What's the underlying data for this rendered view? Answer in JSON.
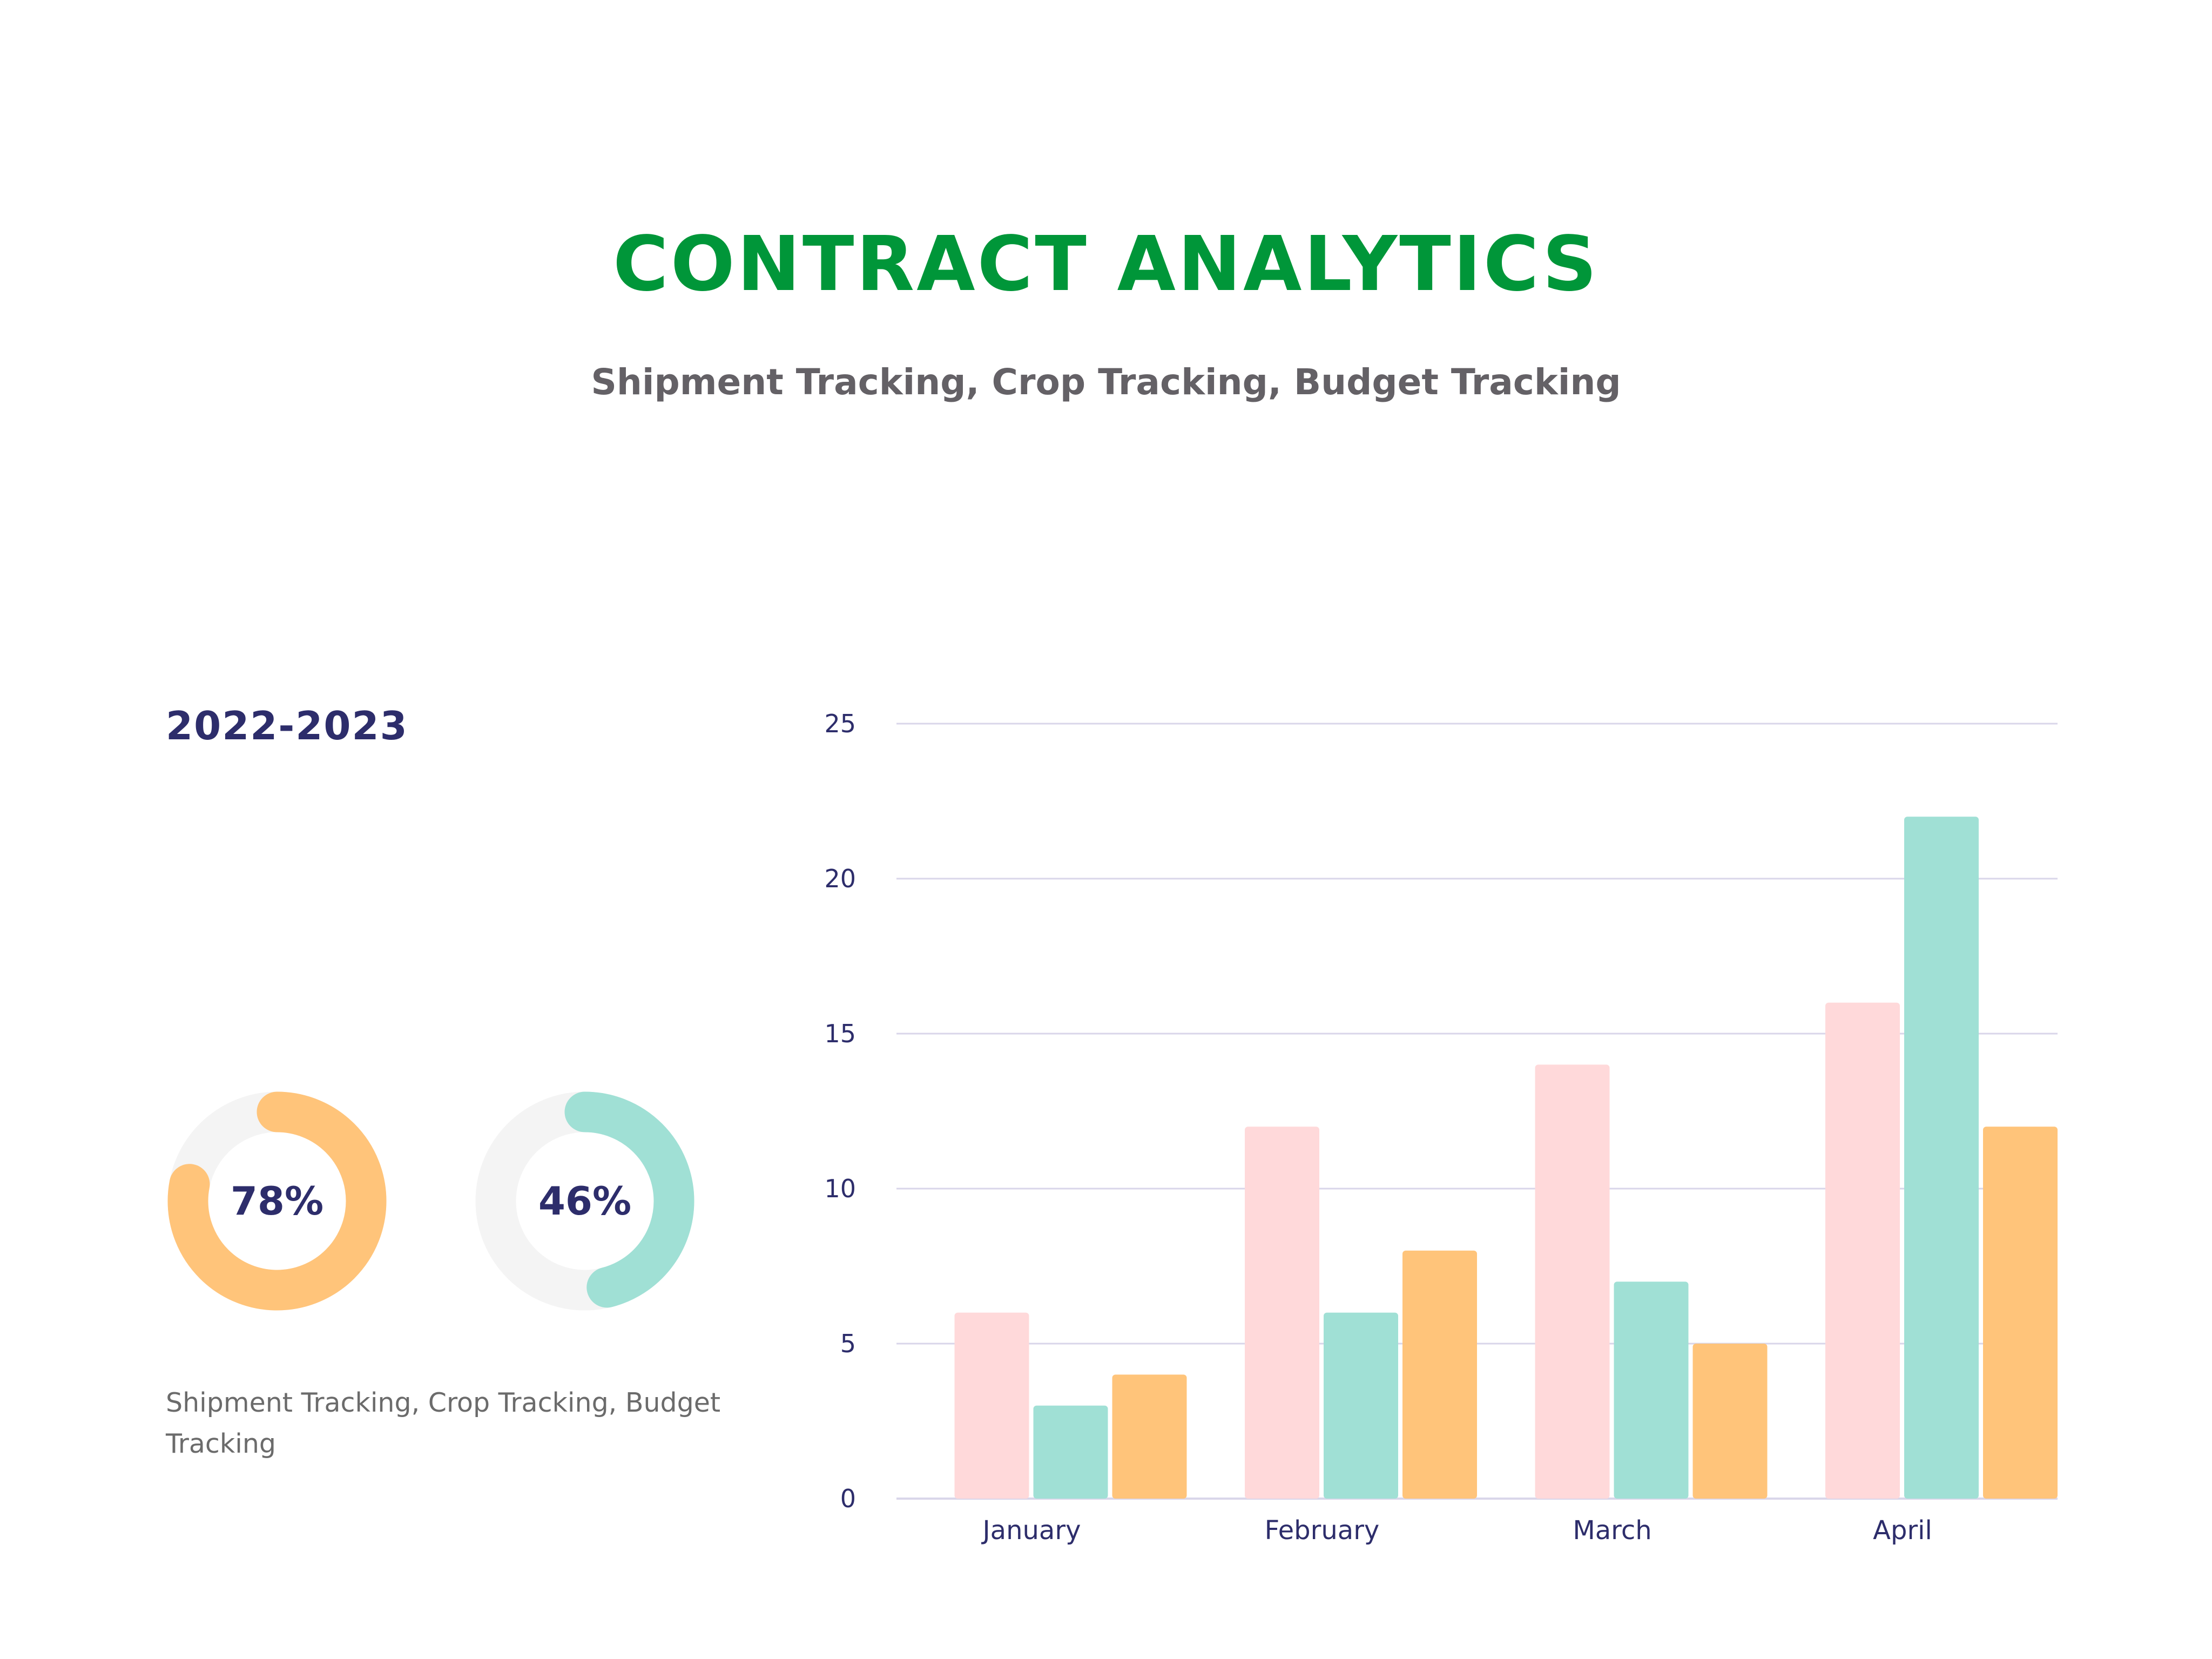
{
  "header": {
    "title": "CONTRACT ANALYTICS",
    "subtitle": "Shipment Tracking, Crop Tracking, Budget Tracking"
  },
  "panel": {
    "year": "2022-2023",
    "caption": "Shipment Tracking, Crop Tracking, Budget Tracking"
  },
  "donuts": [
    {
      "label": "78%",
      "percent": 78,
      "color": "#FFC47A",
      "track_color": "#F4F4F4"
    },
    {
      "label": "46%",
      "percent": 46,
      "color": "#A0E0D5",
      "track_color": "#F4F4F4"
    }
  ],
  "chart_data": {
    "type": "bar",
    "categories": [
      "January",
      "February",
      "March",
      "April"
    ],
    "series": [
      {
        "values": [
          6,
          12,
          14,
          16
        ],
        "color": "#FFD9DA"
      },
      {
        "values": [
          3,
          6,
          7,
          22
        ],
        "color": "#A0E0D5"
      },
      {
        "values": [
          4,
          8,
          5,
          12
        ],
        "color": "#FFC47A"
      }
    ],
    "ylim": [
      0,
      25
    ],
    "yticks": [
      0,
      5,
      10,
      15,
      20,
      25
    ],
    "grid": true,
    "grid_color": "#D9D6EA",
    "axis_text_color": "#2d2d6b",
    "title": "",
    "xlabel": "",
    "ylabel": ""
  }
}
